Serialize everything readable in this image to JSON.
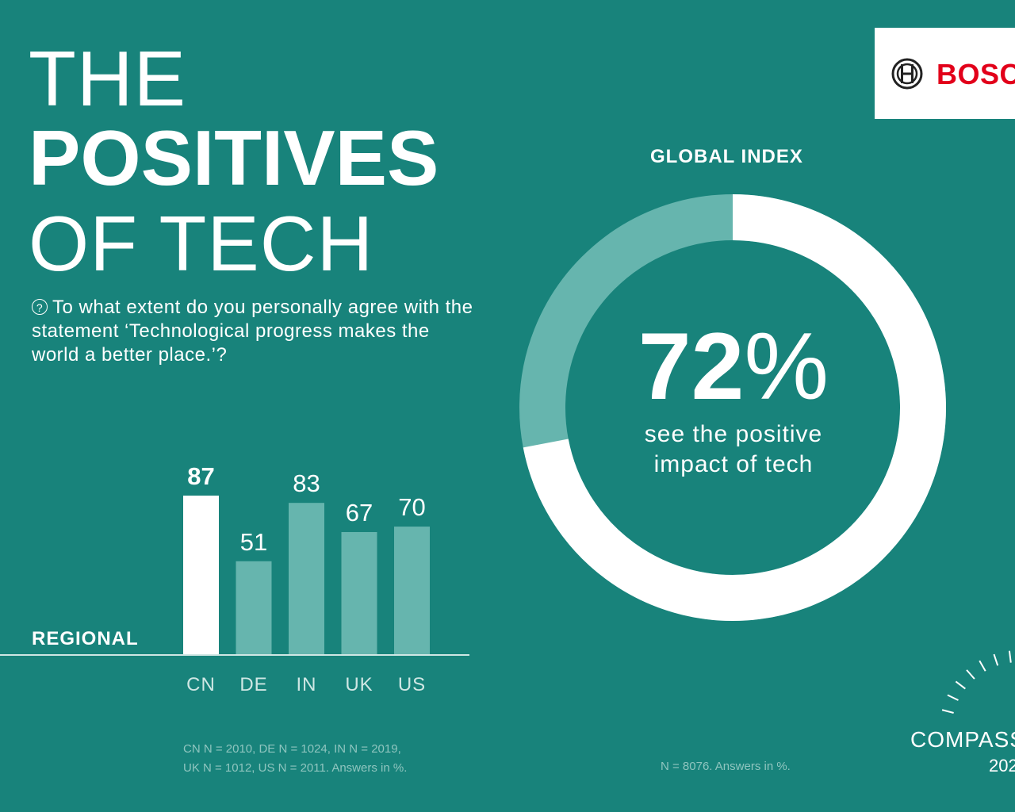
{
  "title": {
    "line1": "THE",
    "line2": "POSITIVES",
    "line3": "OF TECH"
  },
  "question": {
    "icon": "question-circle-icon",
    "icon_glyph": "?",
    "text": "To what extent do you personally agree with the statement ‘Technological progress makes the world a better place.’?"
  },
  "regional_label": "REGIONAL",
  "global_index_label": "GLOBAL INDEX",
  "global": {
    "value": "72",
    "unit": "%",
    "caption_line1": "see the positive",
    "caption_line2": "impact of tech"
  },
  "footnotes": {
    "regional_line1": "CN N = 2010, DE N = 1024, IN N = 2019,",
    "regional_line2": "UK N = 1012, US N = 2011. Answers in %.",
    "global": "N = 8076. Answers in %."
  },
  "logo": {
    "text": "BOSCH",
    "icon": "bosch-armature-icon"
  },
  "compass": {
    "text": "COMPASS",
    "year": "202"
  },
  "colors": {
    "background": "#18837b",
    "highlight_bar": "#ffffff",
    "bar": "#66b5ae",
    "ring_remainder": "#66b5ae",
    "brand_red": "#e2001a"
  },
  "chart_data": [
    {
      "type": "bar",
      "title": "REGIONAL",
      "categories": [
        "CN",
        "DE",
        "IN",
        "UK",
        "US"
      ],
      "values": [
        87,
        51,
        83,
        67,
        70
      ],
      "labels": [
        "87",
        "51",
        "83",
        "67",
        "70"
      ],
      "highlight": "CN",
      "ylim": [
        0,
        100
      ],
      "grid": false,
      "unit": "%"
    },
    {
      "type": "pie",
      "title": "GLOBAL INDEX",
      "style": "donut",
      "categories": [
        "see the positive impact of tech",
        "other"
      ],
      "values": [
        72,
        28
      ],
      "unit": "%"
    }
  ]
}
